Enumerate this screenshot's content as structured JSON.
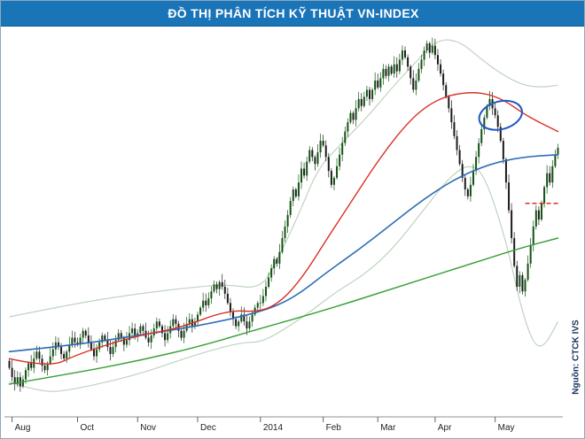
{
  "title_bar": {
    "title": "ĐỒ THỊ PHÂN TÍCH KỸ THUẬT VN-INDEX",
    "bg_color": "#1a74b8",
    "text_color": "#ffffff"
  },
  "source_label": {
    "text": "Nguồn: CTCK IVS",
    "color": "#1a3560"
  },
  "chart_data": {
    "type": "candlestick",
    "title": "ĐỒ THỊ PHÂN TÍCH KỸ THUẬT VN-INDEX",
    "xlabel": "",
    "ylabel": "",
    "grid": false,
    "legend": "none",
    "y_range": [
      450,
      615
    ],
    "x_axis": {
      "total_days": 202,
      "labels": [
        {
          "label": "Aug",
          "day": 1
        },
        {
          "label": "Oct",
          "day": 25
        },
        {
          "label": "Nov",
          "day": 47
        },
        {
          "label": "Dec",
          "day": 69
        },
        {
          "label": "2014",
          "day": 92
        },
        {
          "label": "Feb",
          "day": 115
        },
        {
          "label": "Mar",
          "day": 135
        },
        {
          "label": "Apr",
          "day": 156
        },
        {
          "label": "May",
          "day": 178
        }
      ],
      "axis_color": "#909090",
      "label_color": "#222222"
    },
    "candles": {
      "up_color": "#145214",
      "down_color": "#1c1c1c",
      "closes": [
        470,
        466,
        463,
        466,
        462,
        465,
        469,
        472,
        470,
        474,
        477,
        474,
        471,
        469,
        472,
        475,
        478,
        481,
        479,
        476,
        474,
        477,
        480,
        483,
        481,
        480,
        483,
        486,
        484,
        481,
        478,
        475,
        478,
        481,
        484,
        482,
        479,
        476,
        479,
        482,
        485,
        483,
        480,
        482,
        485,
        487,
        484,
        485,
        488,
        486,
        483,
        481,
        484,
        487,
        490,
        488,
        485,
        482,
        485,
        488,
        491,
        489,
        486,
        483,
        486,
        489,
        491,
        488,
        490,
        493,
        496,
        499,
        497,
        500,
        503,
        506,
        504,
        507,
        505,
        502,
        498,
        494,
        491,
        488,
        490,
        493,
        490,
        487,
        490,
        493,
        496,
        498,
        498,
        501,
        505,
        509,
        513,
        517,
        515,
        520,
        526,
        531,
        536,
        542,
        547,
        544,
        550,
        556,
        553,
        559,
        564,
        561,
        558,
        563,
        568,
        566,
        561,
        555,
        549,
        552,
        557,
        562,
        567,
        572,
        576,
        580,
        577,
        582,
        586,
        583,
        587,
        590,
        586,
        590,
        594,
        591,
        595,
        599,
        596,
        600,
        597,
        601,
        598,
        603,
        607,
        604,
        600,
        595,
        590,
        594,
        599,
        603,
        607,
        610,
        606,
        609,
        605,
        601,
        597,
        592,
        587,
        582,
        576,
        570,
        564,
        558,
        552,
        547,
        544,
        549,
        555,
        561,
        567,
        573,
        578,
        583,
        586,
        582,
        579,
        574,
        568,
        560,
        550,
        538,
        526,
        514,
        505,
        510,
        503,
        508,
        515,
        523,
        531,
        538,
        534,
        541,
        548,
        554,
        550,
        557,
        562,
        565
      ]
    },
    "overlays": {
      "bollinger_upper": {
        "name": "upper band",
        "color": "#bfd3bf",
        "width": 1.2,
        "points": [
          [
            0,
            492
          ],
          [
            25,
            498
          ],
          [
            47,
            502
          ],
          [
            69,
            505
          ],
          [
            80,
            506
          ],
          [
            92,
            504
          ],
          [
            98,
            516
          ],
          [
            106,
            536
          ],
          [
            113,
            556
          ],
          [
            121,
            566
          ],
          [
            131,
            578
          ],
          [
            141,
            592
          ],
          [
            149,
            602
          ],
          [
            157,
            612
          ],
          [
            165,
            611
          ],
          [
            172,
            604
          ],
          [
            180,
            597
          ],
          [
            188,
            592
          ],
          [
            195,
            591
          ],
          [
            201,
            592
          ]
        ]
      },
      "bollinger_lower": {
        "name": "lower band",
        "color": "#bfd3bf",
        "width": 1.2,
        "points": [
          [
            0,
            464
          ],
          [
            12,
            459
          ],
          [
            25,
            461
          ],
          [
            47,
            467
          ],
          [
            69,
            476
          ],
          [
            85,
            481
          ],
          [
            92,
            481
          ],
          [
            100,
            486
          ],
          [
            110,
            494
          ],
          [
            120,
            503
          ],
          [
            131,
            511
          ],
          [
            141,
            522
          ],
          [
            151,
            537
          ],
          [
            161,
            552
          ],
          [
            168,
            558
          ],
          [
            174,
            554
          ],
          [
            182,
            525
          ],
          [
            187,
            498
          ],
          [
            192,
            480
          ],
          [
            196,
            479
          ],
          [
            201,
            490
          ]
        ]
      },
      "ma_red": {
        "name": "short moving average",
        "color": "#d93025",
        "width": 1.4,
        "points": [
          [
            0,
            474
          ],
          [
            15,
            470
          ],
          [
            25,
            476
          ],
          [
            47,
            484
          ],
          [
            62,
            487
          ],
          [
            80,
            495
          ],
          [
            92,
            494
          ],
          [
            100,
            499
          ],
          [
            108,
            510
          ],
          [
            116,
            525
          ],
          [
            126,
            543
          ],
          [
            136,
            561
          ],
          [
            146,
            576
          ],
          [
            154,
            584
          ],
          [
            162,
            588
          ],
          [
            170,
            589
          ],
          [
            176,
            588
          ],
          [
            182,
            585
          ],
          [
            188,
            580
          ],
          [
            194,
            576
          ],
          [
            201,
            572
          ]
        ]
      },
      "ma_blue": {
        "name": "medium moving average",
        "color": "#2d6cb5",
        "width": 1.6,
        "points": [
          [
            0,
            477
          ],
          [
            25,
            480
          ],
          [
            47,
            484
          ],
          [
            69,
            488
          ],
          [
            92,
            494
          ],
          [
            104,
            500
          ],
          [
            116,
            511
          ],
          [
            128,
            521
          ],
          [
            140,
            532
          ],
          [
            152,
            543
          ],
          [
            164,
            552
          ],
          [
            176,
            558
          ],
          [
            188,
            561
          ],
          [
            201,
            562
          ]
        ]
      },
      "ma_green": {
        "name": "long moving average",
        "color": "#3aa03a",
        "width": 1.5,
        "points": [
          [
            0,
            463
          ],
          [
            25,
            468
          ],
          [
            47,
            473
          ],
          [
            69,
            479
          ],
          [
            92,
            487
          ],
          [
            116,
            495
          ],
          [
            140,
            504
          ],
          [
            164,
            513
          ],
          [
            188,
            522
          ],
          [
            201,
            526
          ]
        ]
      },
      "dashed_level": {
        "name": "horizontal support level (dashed)",
        "color": "#d93025",
        "width": 1.6,
        "price": 541,
        "from_day": 189,
        "to_day": 202
      }
    },
    "annotations": {
      "ellipse": {
        "name": "highlight circle on price meeting falling red MA",
        "day": 180,
        "price": 579,
        "rx_days": 8,
        "ry_price": 6,
        "rotation_deg": -15,
        "color": "#1f56c4",
        "stroke_width": 2
      }
    }
  }
}
